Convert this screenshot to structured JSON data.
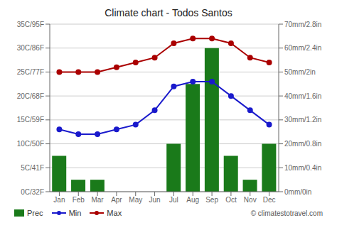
{
  "chart_data": {
    "type": "bar",
    "title": "Climate chart - Todos Santos",
    "categories": [
      "Jan",
      "Feb",
      "Mar",
      "Apr",
      "May",
      "Jun",
      "Jul",
      "Aug",
      "Sep",
      "Oct",
      "Nov",
      "Dec"
    ],
    "series": [
      {
        "name": "Prec",
        "type": "bar",
        "color": "#1a7a1a",
        "axis": "y2",
        "values": [
          15,
          5,
          5,
          0,
          0,
          0,
          20,
          45,
          60,
          15,
          5,
          20
        ]
      },
      {
        "name": "Min",
        "type": "line",
        "color": "#1a1acc",
        "marker": "circle",
        "values": [
          13,
          12,
          12,
          13,
          14,
          17,
          22,
          23,
          23,
          20,
          17,
          14
        ]
      },
      {
        "name": "Max",
        "type": "line",
        "color": "#aa0000",
        "marker": "circle",
        "values": [
          25,
          25,
          25,
          26,
          27,
          28,
          31,
          32,
          32,
          31,
          28,
          27
        ]
      }
    ],
    "ylim": [
      0,
      35
    ],
    "yticks": [
      {
        "value": 0,
        "label": "0C/32F"
      },
      {
        "value": 5,
        "label": "5C/41F"
      },
      {
        "value": 10,
        "label": "10C/50F"
      },
      {
        "value": 15,
        "label": "15C/59F"
      },
      {
        "value": 20,
        "label": "20C/68F"
      },
      {
        "value": 25,
        "label": "25C/77F"
      },
      {
        "value": 30,
        "label": "30C/86F"
      },
      {
        "value": 35,
        "label": "35C/95F"
      }
    ],
    "y2lim": [
      0,
      70
    ],
    "y2ticks": [
      {
        "value": 0,
        "label": "0mm/0in"
      },
      {
        "value": 10,
        "label": "10mm/0.4in"
      },
      {
        "value": 20,
        "label": "20mm/0.8in"
      },
      {
        "value": 30,
        "label": "30mm/1.2in"
      },
      {
        "value": 40,
        "label": "40mm/1.6in"
      },
      {
        "value": 50,
        "label": "50mm/2in"
      },
      {
        "value": 60,
        "label": "60mm/2.4in"
      },
      {
        "value": 70,
        "label": "70mm/2.8in"
      }
    ],
    "grid": true,
    "annotations": [
      "© climatestotravel.com"
    ]
  }
}
